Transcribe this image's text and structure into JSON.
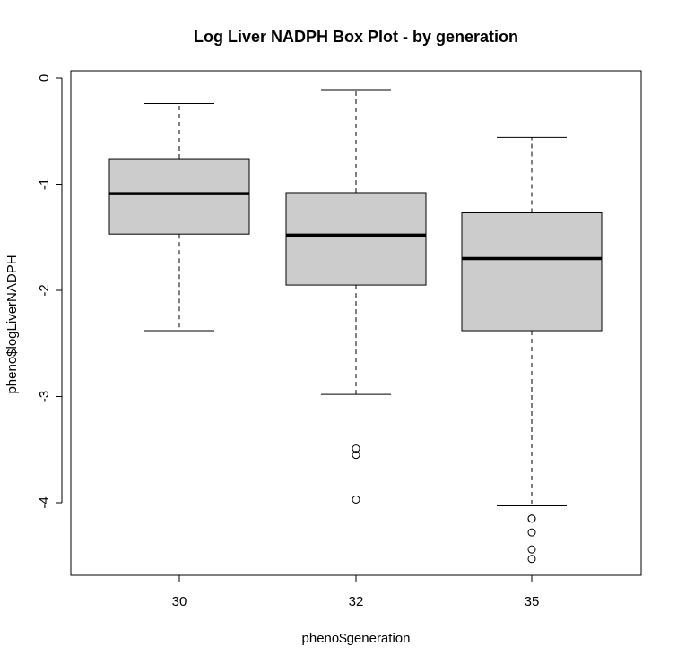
{
  "chart_data": {
    "type": "boxplot",
    "title": "Log Liver NADPH Box Plot - by generation",
    "xlabel": "pheno$generation",
    "ylabel": "pheno$logLiverNADPH",
    "categories": [
      "30",
      "32",
      "35"
    ],
    "ylim": [
      -4.7,
      0.0
    ],
    "yticks": [
      0,
      -1,
      -2,
      -3,
      -4
    ],
    "ytick_labels": [
      "0",
      "-1",
      "-2",
      "-3",
      "-4"
    ],
    "grid": false,
    "legend": "none",
    "box_fill": "#cccccc",
    "line_color": "#000000",
    "boxes": [
      {
        "category": "30",
        "whisker_low": -2.38,
        "q1": -1.47,
        "median": -1.09,
        "q3": -0.76,
        "whisker_high": -0.24,
        "outliers": []
      },
      {
        "category": "32",
        "whisker_low": -2.98,
        "q1": -1.95,
        "median": -1.48,
        "q3": -1.08,
        "whisker_high": -0.11,
        "outliers": [
          -3.49,
          -3.55,
          -3.97
        ]
      },
      {
        "category": "35",
        "whisker_low": -4.03,
        "q1": -2.38,
        "median": -1.7,
        "q3": -1.27,
        "whisker_high": -0.56,
        "outliers": [
          -4.15,
          -4.15,
          -4.28,
          -4.44,
          -4.53
        ]
      }
    ]
  }
}
